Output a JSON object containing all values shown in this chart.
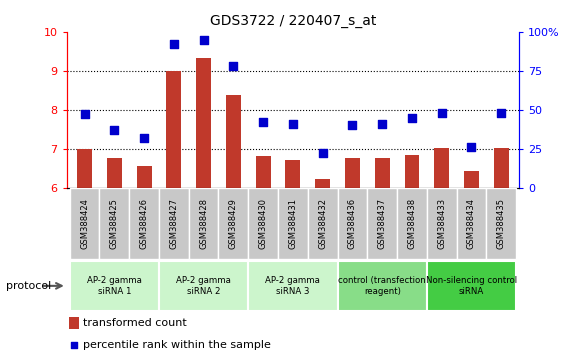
{
  "title": "GDS3722 / 220407_s_at",
  "samples": [
    "GSM388424",
    "GSM388425",
    "GSM388426",
    "GSM388427",
    "GSM388428",
    "GSM388429",
    "GSM388430",
    "GSM388431",
    "GSM388432",
    "GSM388436",
    "GSM388437",
    "GSM388438",
    "GSM388433",
    "GSM388434",
    "GSM388435"
  ],
  "transformed_count": [
    7.0,
    6.75,
    6.55,
    9.0,
    9.32,
    8.38,
    6.8,
    6.72,
    6.22,
    6.75,
    6.75,
    6.85,
    7.02,
    6.42,
    7.03
  ],
  "percentile_rank": [
    47,
    37,
    32,
    92,
    95,
    78,
    42,
    41,
    22,
    40,
    41,
    45,
    48,
    26,
    48
  ],
  "ylim_left": [
    6,
    10
  ],
  "ylim_right": [
    0,
    100
  ],
  "yticks_left": [
    6,
    7,
    8,
    9,
    10
  ],
  "yticks_right": [
    0,
    25,
    50,
    75,
    100
  ],
  "bar_color": "#c0392b",
  "dot_color": "#0000cc",
  "groups": [
    {
      "label": "AP-2 gamma\nsiRNA 1",
      "start": 0,
      "end": 3,
      "color": "#ccf5cc"
    },
    {
      "label": "AP-2 gamma\nsiRNA 2",
      "start": 3,
      "end": 6,
      "color": "#ccf5cc"
    },
    {
      "label": "AP-2 gamma\nsiRNA 3",
      "start": 6,
      "end": 9,
      "color": "#ccf5cc"
    },
    {
      "label": "control (transfection\nreagent)",
      "start": 9,
      "end": 12,
      "color": "#88dd88"
    },
    {
      "label": "Non-silencing control\nsiRNA",
      "start": 12,
      "end": 15,
      "color": "#44cc44"
    }
  ],
  "legend_bar_label": "transformed count",
  "legend_dot_label": "percentile rank within the sample",
  "bar_width": 0.5,
  "dot_size": 30,
  "sample_box_color": "#c8c8c8",
  "protocol_label": "protocol"
}
